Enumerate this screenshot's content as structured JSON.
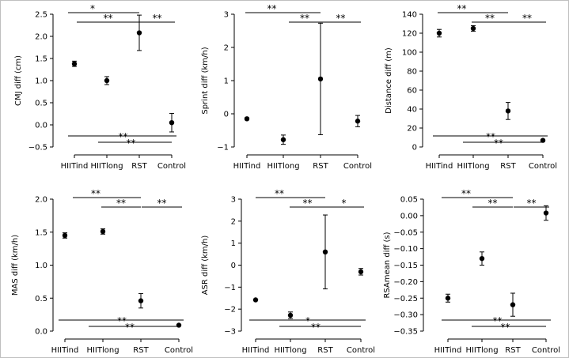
{
  "chart_data": [
    {
      "type": "scatter",
      "categories": [
        "HIITind",
        "HIITlong",
        "RST",
        "Control"
      ],
      "ylabel": "CMJ diff (cm)",
      "ylim": [
        -0.5,
        2.5
      ],
      "yticks": [
        -0.5,
        0.0,
        0.5,
        1.0,
        1.5,
        2.0,
        2.5
      ],
      "tick_labels": [
        "−0.5",
        "0.0",
        "0.5",
        "1.0",
        "1.5",
        "2.0",
        "2.5"
      ],
      "values": [
        1.38,
        1.0,
        2.08,
        0.05
      ],
      "error": [
        0.06,
        0.09,
        0.4,
        0.21
      ],
      "significance": [
        {
          "from": 0,
          "to": 2,
          "label": "*",
          "position": "top"
        },
        {
          "from": 1,
          "to": 2,
          "label": "**",
          "position": "top"
        },
        {
          "from": 2,
          "to": 3,
          "label": "**",
          "position": "top"
        },
        {
          "from": 0,
          "to": 3,
          "label": "**",
          "position": "bottom"
        },
        {
          "from": 1,
          "to": 3,
          "label": "**",
          "position": "bottom"
        }
      ]
    },
    {
      "type": "scatter",
      "categories": [
        "HIITind",
        "HIITlong",
        "RST",
        "Control"
      ],
      "ylabel": "Sprint diff (km/h)",
      "ylim": [
        -1,
        3
      ],
      "yticks": [
        -1,
        0,
        1,
        2,
        3
      ],
      "tick_labels": [
        "−1",
        "0",
        "1",
        "2",
        "3"
      ],
      "values": [
        -0.15,
        -0.78,
        1.05,
        -0.22
      ],
      "error": [
        0.03,
        0.14,
        1.68,
        0.17
      ],
      "significance": [
        {
          "from": 0,
          "to": 2,
          "label": "**",
          "position": "top"
        },
        {
          "from": 1,
          "to": 2,
          "label": "**",
          "position": "top"
        },
        {
          "from": 2,
          "to": 3,
          "label": "**",
          "position": "top"
        }
      ]
    },
    {
      "type": "scatter",
      "categories": [
        "HIITind",
        "HIITlong",
        "RST",
        "Control"
      ],
      "ylabel": "Distance diff (m)",
      "ylim": [
        0,
        140
      ],
      "yticks": [
        0,
        20,
        40,
        60,
        80,
        100,
        120,
        140
      ],
      "tick_labels": [
        "0",
        "20",
        "40",
        "60",
        "80",
        "100",
        "120",
        "140"
      ],
      "values": [
        120,
        125,
        38,
        7
      ],
      "error": [
        4,
        3,
        9,
        1
      ],
      "significance": [
        {
          "from": 0,
          "to": 2,
          "label": "**",
          "position": "top"
        },
        {
          "from": 1,
          "to": 2,
          "label": "**",
          "position": "top"
        },
        {
          "from": 2,
          "to": 3,
          "label": "**",
          "position": "top"
        },
        {
          "from": 0,
          "to": 3,
          "label": "**",
          "position": "bottom"
        },
        {
          "from": 1,
          "to": 3,
          "label": "**",
          "position": "bottom"
        }
      ]
    },
    {
      "type": "scatter",
      "categories": [
        "HIITind",
        "HIITlong",
        "RST",
        "Control"
      ],
      "ylabel": "MAS diff (km/h)",
      "ylim": [
        0,
        2
      ],
      "yticks": [
        0,
        0.5,
        1.0,
        1.5,
        2.0
      ],
      "tick_labels": [
        "0.0",
        "0.5",
        "1.0",
        "1.5",
        "2.0"
      ],
      "values": [
        1.45,
        1.51,
        0.46,
        0.09
      ],
      "error": [
        0.04,
        0.04,
        0.11,
        0.01
      ],
      "significance": [
        {
          "from": 0,
          "to": 2,
          "label": "**",
          "position": "top"
        },
        {
          "from": 1,
          "to": 2,
          "label": "**",
          "position": "top"
        },
        {
          "from": 2,
          "to": 3,
          "label": "**",
          "position": "top"
        },
        {
          "from": 0,
          "to": 3,
          "label": "**",
          "position": "bottom"
        },
        {
          "from": 1,
          "to": 3,
          "label": "**",
          "position": "bottom"
        }
      ]
    },
    {
      "type": "scatter",
      "categories": [
        "HIITind",
        "HIITlong",
        "RST",
        "Control"
      ],
      "ylabel": "ASR diff (km/h)",
      "ylim": [
        -3,
        3
      ],
      "yticks": [
        -3,
        -2,
        -1,
        0,
        1,
        2,
        3
      ],
      "tick_labels": [
        "−3",
        "−2",
        "−1",
        "0",
        "1",
        "2",
        "3"
      ],
      "values": [
        -1.58,
        -2.28,
        0.6,
        -0.3
      ],
      "error": [
        0.03,
        0.15,
        1.68,
        0.15
      ],
      "significance": [
        {
          "from": 0,
          "to": 2,
          "label": "**",
          "position": "top"
        },
        {
          "from": 1,
          "to": 2,
          "label": "**",
          "position": "top"
        },
        {
          "from": 2,
          "to": 3,
          "label": "*",
          "position": "top"
        },
        {
          "from": 0,
          "to": 3,
          "label": "*",
          "position": "bottom"
        },
        {
          "from": 1,
          "to": 3,
          "label": "**",
          "position": "bottom"
        }
      ]
    },
    {
      "type": "scatter",
      "categories": [
        "HIITind",
        "HIITlong",
        "RST",
        "Control"
      ],
      "ylabel": "RSAmean diff (s)",
      "ylim": [
        -0.35,
        0.05
      ],
      "yticks": [
        -0.35,
        -0.3,
        -0.25,
        -0.2,
        -0.15,
        -0.1,
        -0.05,
        0.0,
        0.05
      ],
      "tick_labels": [
        "−0.35",
        "−0.30",
        "−0.25",
        "−0.20",
        "−0.15",
        "−0.10",
        "−0.05",
        "0.00",
        "0.05"
      ],
      "values": [
        -0.25,
        -0.13,
        -0.27,
        0.008
      ],
      "error": [
        0.012,
        0.02,
        0.035,
        0.022
      ],
      "significance": [
        {
          "from": 0,
          "to": 2,
          "label": "**",
          "position": "top"
        },
        {
          "from": 1,
          "to": 2,
          "label": "**",
          "position": "top"
        },
        {
          "from": 2,
          "to": 3,
          "label": "**",
          "position": "top"
        },
        {
          "from": 0,
          "to": 3,
          "label": "**",
          "position": "bottom"
        },
        {
          "from": 1,
          "to": 3,
          "label": "**",
          "position": "bottom"
        }
      ]
    }
  ]
}
